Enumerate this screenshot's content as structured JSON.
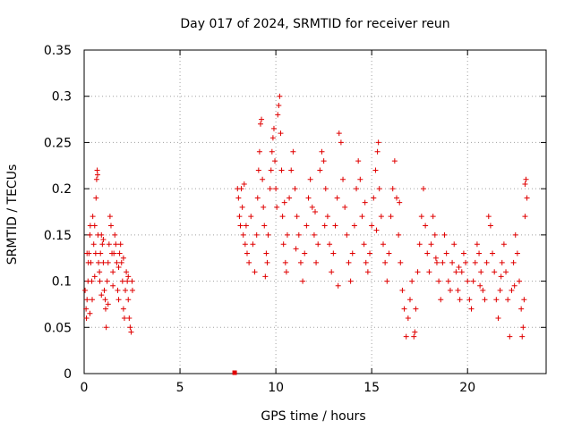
{
  "chart_data": {
    "type": "scatter",
    "title": "Day 017 of 2024, SRMTID for receiver reun",
    "xlabel": "GPS time / hours",
    "ylabel": "SRMTID / TECUs",
    "xlim": [
      0,
      24.1
    ],
    "ylim": [
      0,
      0.35
    ],
    "x_ticks": [
      0,
      5,
      10,
      15,
      20
    ],
    "x_tick_labels": [
      "0",
      "5",
      "10",
      "15",
      "20"
    ],
    "y_ticks": [
      0,
      0.05,
      0.1,
      0.15,
      0.2,
      0.25,
      0.3,
      0.35
    ],
    "y_tick_labels": [
      "0",
      "0.05",
      "0.1",
      "0.15",
      "0.2",
      "0.25",
      "0.3",
      "0.35"
    ],
    "grid": true,
    "marker": "+",
    "color": "#e00000",
    "series": [
      {
        "name": "SRMTID",
        "points": [
          [
            0.05,
            0.09
          ],
          [
            0.1,
            0.07
          ],
          [
            0.12,
            0.06
          ],
          [
            0.15,
            0.08
          ],
          [
            0.2,
            0.1
          ],
          [
            0.22,
            0.12
          ],
          [
            0.25,
            0.13
          ],
          [
            0.3,
            0.15
          ],
          [
            0.32,
            0.16
          ],
          [
            0.35,
            0.12
          ],
          [
            0.4,
            0.1
          ],
          [
            0.42,
            0.08
          ],
          [
            0.45,
            0.17
          ],
          [
            0.5,
            0.14
          ],
          [
            0.55,
            0.16
          ],
          [
            0.6,
            0.13
          ],
          [
            0.62,
            0.19
          ],
          [
            0.65,
            0.21
          ],
          [
            0.68,
            0.22
          ],
          [
            0.7,
            0.215
          ],
          [
            0.72,
            0.15
          ],
          [
            0.75,
            0.12
          ],
          [
            0.8,
            0.11
          ],
          [
            0.82,
            0.1
          ],
          [
            0.85,
            0.13
          ],
          [
            0.9,
            0.15
          ],
          [
            0.95,
            0.14
          ],
          [
            1.0,
            0.12
          ],
          [
            1.05,
            0.09
          ],
          [
            1.1,
            0.08
          ],
          [
            1.12,
            0.07
          ],
          [
            1.15,
            0.05
          ],
          [
            1.2,
            0.1
          ],
          [
            1.25,
            0.12
          ],
          [
            1.3,
            0.14
          ],
          [
            1.35,
            0.17
          ],
          [
            1.4,
            0.16
          ],
          [
            1.45,
            0.13
          ],
          [
            1.5,
            0.11
          ],
          [
            1.55,
            0.13
          ],
          [
            1.6,
            0.15
          ],
          [
            1.65,
            0.14
          ],
          [
            1.7,
            0.12
          ],
          [
            1.75,
            0.09
          ],
          [
            1.8,
            0.08
          ],
          [
            1.85,
            0.13
          ],
          [
            1.9,
            0.14
          ],
          [
            1.95,
            0.12
          ],
          [
            2.0,
            0.1
          ],
          [
            2.05,
            0.07
          ],
          [
            2.1,
            0.06
          ],
          [
            2.15,
            0.09
          ],
          [
            2.2,
            0.11
          ],
          [
            2.25,
            0.1
          ],
          [
            2.3,
            0.08
          ],
          [
            2.35,
            0.06
          ],
          [
            2.4,
            0.05
          ],
          [
            2.45,
            0.045
          ],
          [
            2.5,
            0.1
          ],
          [
            2.52,
            0.09
          ],
          [
            0.3,
            0.065
          ],
          [
            0.55,
            0.105
          ],
          [
            0.9,
            0.085
          ],
          [
            1.0,
            0.145
          ],
          [
            1.25,
            0.075
          ],
          [
            1.5,
            0.095
          ],
          [
            1.8,
            0.115
          ],
          [
            2.05,
            0.125
          ],
          [
            2.3,
            0.105
          ],
          [
            0.15,
            0.13
          ],
          [
            7.85,
            0.0
          ],
          [
            8.0,
            0.2
          ],
          [
            8.05,
            0.19
          ],
          [
            8.1,
            0.17
          ],
          [
            8.15,
            0.16
          ],
          [
            8.2,
            0.2
          ],
          [
            8.25,
            0.18
          ],
          [
            8.3,
            0.15
          ],
          [
            8.4,
            0.14
          ],
          [
            8.45,
            0.16
          ],
          [
            8.5,
            0.13
          ],
          [
            8.6,
            0.12
          ],
          [
            8.7,
            0.17
          ],
          [
            8.8,
            0.14
          ],
          [
            8.9,
            0.11
          ],
          [
            9.0,
            0.15
          ],
          [
            9.05,
            0.19
          ],
          [
            9.1,
            0.22
          ],
          [
            9.15,
            0.24
          ],
          [
            9.2,
            0.27
          ],
          [
            9.25,
            0.275
          ],
          [
            9.3,
            0.21
          ],
          [
            9.35,
            0.18
          ],
          [
            9.4,
            0.16
          ],
          [
            9.5,
            0.13
          ],
          [
            9.55,
            0.12
          ],
          [
            9.6,
            0.15
          ],
          [
            9.7,
            0.2
          ],
          [
            9.75,
            0.22
          ],
          [
            9.8,
            0.24
          ],
          [
            9.85,
            0.255
          ],
          [
            9.9,
            0.265
          ],
          [
            9.95,
            0.23
          ],
          [
            10.0,
            0.2
          ],
          [
            10.05,
            0.18
          ],
          [
            10.1,
            0.28
          ],
          [
            10.15,
            0.29
          ],
          [
            10.2,
            0.3
          ],
          [
            10.25,
            0.26
          ],
          [
            10.3,
            0.22
          ],
          [
            10.35,
            0.17
          ],
          [
            10.4,
            0.14
          ],
          [
            10.5,
            0.12
          ],
          [
            10.55,
            0.11
          ],
          [
            10.6,
            0.15
          ],
          [
            10.7,
            0.19
          ],
          [
            10.8,
            0.22
          ],
          [
            10.9,
            0.24
          ],
          [
            11.0,
            0.2
          ],
          [
            11.1,
            0.17
          ],
          [
            11.2,
            0.15
          ],
          [
            11.3,
            0.12
          ],
          [
            11.4,
            0.1
          ],
          [
            11.5,
            0.13
          ],
          [
            11.6,
            0.16
          ],
          [
            11.7,
            0.19
          ],
          [
            11.8,
            0.21
          ],
          [
            11.9,
            0.18
          ],
          [
            12.0,
            0.15
          ],
          [
            12.1,
            0.12
          ],
          [
            12.2,
            0.14
          ],
          [
            12.3,
            0.22
          ],
          [
            12.4,
            0.24
          ],
          [
            12.5,
            0.23
          ],
          [
            12.6,
            0.2
          ],
          [
            12.7,
            0.17
          ],
          [
            12.8,
            0.14
          ],
          [
            12.9,
            0.11
          ],
          [
            13.0,
            0.13
          ],
          [
            13.1,
            0.16
          ],
          [
            13.2,
            0.19
          ],
          [
            13.3,
            0.26
          ],
          [
            13.4,
            0.25
          ],
          [
            13.5,
            0.21
          ],
          [
            13.6,
            0.18
          ],
          [
            13.7,
            0.15
          ],
          [
            13.8,
            0.12
          ],
          [
            13.9,
            0.1
          ],
          [
            14.0,
            0.13
          ],
          [
            14.1,
            0.16
          ],
          [
            14.2,
            0.2
          ],
          [
            14.3,
            0.23
          ],
          [
            14.4,
            0.21
          ],
          [
            14.5,
            0.17
          ],
          [
            14.6,
            0.14
          ],
          [
            14.7,
            0.12
          ],
          [
            14.8,
            0.11
          ],
          [
            14.9,
            0.13
          ],
          [
            15.0,
            0.16
          ],
          [
            15.1,
            0.19
          ],
          [
            15.2,
            0.22
          ],
          [
            15.3,
            0.24
          ],
          [
            15.35,
            0.25
          ],
          [
            15.4,
            0.2
          ],
          [
            15.5,
            0.17
          ],
          [
            15.6,
            0.14
          ],
          [
            15.7,
            0.12
          ],
          [
            15.8,
            0.1
          ],
          [
            15.9,
            0.13
          ],
          [
            16.0,
            0.17
          ],
          [
            16.1,
            0.2
          ],
          [
            16.2,
            0.23
          ],
          [
            16.3,
            0.19
          ],
          [
            16.4,
            0.15
          ],
          [
            16.5,
            0.12
          ],
          [
            16.6,
            0.09
          ],
          [
            16.7,
            0.07
          ],
          [
            16.8,
            0.04
          ],
          [
            16.9,
            0.06
          ],
          [
            17.0,
            0.08
          ],
          [
            17.1,
            0.1
          ],
          [
            17.2,
            0.04
          ],
          [
            17.3,
            0.07
          ],
          [
            17.4,
            0.11
          ],
          [
            17.5,
            0.14
          ],
          [
            17.6,
            0.17
          ],
          [
            17.7,
            0.2
          ],
          [
            17.8,
            0.16
          ],
          [
            17.9,
            0.13
          ],
          [
            18.0,
            0.11
          ],
          [
            18.1,
            0.14
          ],
          [
            18.2,
            0.17
          ],
          [
            18.3,
            0.15
          ],
          [
            18.4,
            0.12
          ],
          [
            18.5,
            0.1
          ],
          [
            18.6,
            0.08
          ],
          [
            18.7,
            0.12
          ],
          [
            18.8,
            0.15
          ],
          [
            18.9,
            0.13
          ],
          [
            19.0,
            0.1
          ],
          [
            19.1,
            0.09
          ],
          [
            19.2,
            0.12
          ],
          [
            19.3,
            0.14
          ],
          [
            19.4,
            0.11
          ],
          [
            19.5,
            0.09
          ],
          [
            19.6,
            0.08
          ],
          [
            19.7,
            0.11
          ],
          [
            19.8,
            0.13
          ],
          [
            19.9,
            0.12
          ],
          [
            20.0,
            0.1
          ],
          [
            20.1,
            0.08
          ],
          [
            20.2,
            0.07
          ],
          [
            20.3,
            0.1
          ],
          [
            20.4,
            0.12
          ],
          [
            20.5,
            0.14
          ],
          [
            20.6,
            0.13
          ],
          [
            20.7,
            0.11
          ],
          [
            20.8,
            0.09
          ],
          [
            20.9,
            0.08
          ],
          [
            21.0,
            0.12
          ],
          [
            21.1,
            0.17
          ],
          [
            21.2,
            0.16
          ],
          [
            21.3,
            0.13
          ],
          [
            21.4,
            0.11
          ],
          [
            21.5,
            0.08
          ],
          [
            21.6,
            0.06
          ],
          [
            21.7,
            0.09
          ],
          [
            21.8,
            0.12
          ],
          [
            21.9,
            0.14
          ],
          [
            22.0,
            0.11
          ],
          [
            22.1,
            0.08
          ],
          [
            22.2,
            0.04
          ],
          [
            22.3,
            0.09
          ],
          [
            22.4,
            0.12
          ],
          [
            22.5,
            0.15
          ],
          [
            22.6,
            0.13
          ],
          [
            22.7,
            0.1
          ],
          [
            22.8,
            0.07
          ],
          [
            22.9,
            0.05
          ],
          [
            22.95,
            0.08
          ],
          [
            23.0,
            0.205
          ],
          [
            23.05,
            0.21
          ],
          [
            23.1,
            0.19
          ],
          [
            23.0,
            0.17
          ],
          [
            22.85,
            0.04
          ],
          [
            8.35,
            0.205
          ],
          [
            9.45,
            0.105
          ],
          [
            11.05,
            0.135
          ],
          [
            12.55,
            0.16
          ],
          [
            13.25,
            0.095
          ],
          [
            14.65,
            0.185
          ],
          [
            15.25,
            0.155
          ],
          [
            16.45,
            0.185
          ],
          [
            17.25,
            0.045
          ],
          [
            18.35,
            0.125
          ],
          [
            19.55,
            0.115
          ],
          [
            20.65,
            0.095
          ],
          [
            21.75,
            0.105
          ],
          [
            22.45,
            0.095
          ],
          [
            10.45,
            0.185
          ],
          [
            12.05,
            0.175
          ]
        ]
      }
    ]
  }
}
